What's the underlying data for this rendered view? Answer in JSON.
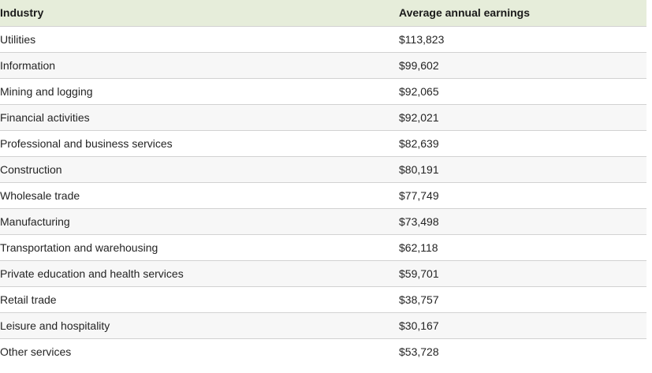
{
  "colors": {
    "header_bg": "#e6edda",
    "row_alt_bg": "#f7f7f7",
    "border": "#d2d2d2",
    "text": "#242424"
  },
  "table": {
    "columns": [
      "Industry",
      "Average annual earnings"
    ],
    "rows": [
      {
        "industry": "Utilities",
        "earnings": "$113,823"
      },
      {
        "industry": "Information",
        "earnings": "$99,602"
      },
      {
        "industry": "Mining and logging",
        "earnings": "$92,065"
      },
      {
        "industry": "Financial activities",
        "earnings": "$92,021"
      },
      {
        "industry": "Professional and business services",
        "earnings": "$82,639"
      },
      {
        "industry": "Construction",
        "earnings": "$80,191"
      },
      {
        "industry": "Wholesale trade",
        "earnings": "$77,749"
      },
      {
        "industry": "Manufacturing",
        "earnings": "$73,498"
      },
      {
        "industry": "Transportation and warehousing",
        "earnings": "$62,118"
      },
      {
        "industry": "Private education and health services",
        "earnings": "$59,701"
      },
      {
        "industry": "Retail trade",
        "earnings": "$38,757"
      },
      {
        "industry": "Leisure and hospitality",
        "earnings": "$30,167"
      },
      {
        "industry": "Other services",
        "earnings": "$53,728"
      }
    ]
  },
  "chart_data": {
    "type": "table",
    "title": "",
    "columns": [
      "Industry",
      "Average annual earnings"
    ],
    "categories": [
      "Utilities",
      "Information",
      "Mining and logging",
      "Financial activities",
      "Professional and business services",
      "Construction",
      "Wholesale trade",
      "Manufacturing",
      "Transportation and warehousing",
      "Private education and health services",
      "Retail trade",
      "Leisure and hospitality",
      "Other services"
    ],
    "values": [
      113823,
      99602,
      92065,
      92021,
      82639,
      80191,
      77749,
      73498,
      62118,
      59701,
      38757,
      30167,
      53728
    ]
  }
}
